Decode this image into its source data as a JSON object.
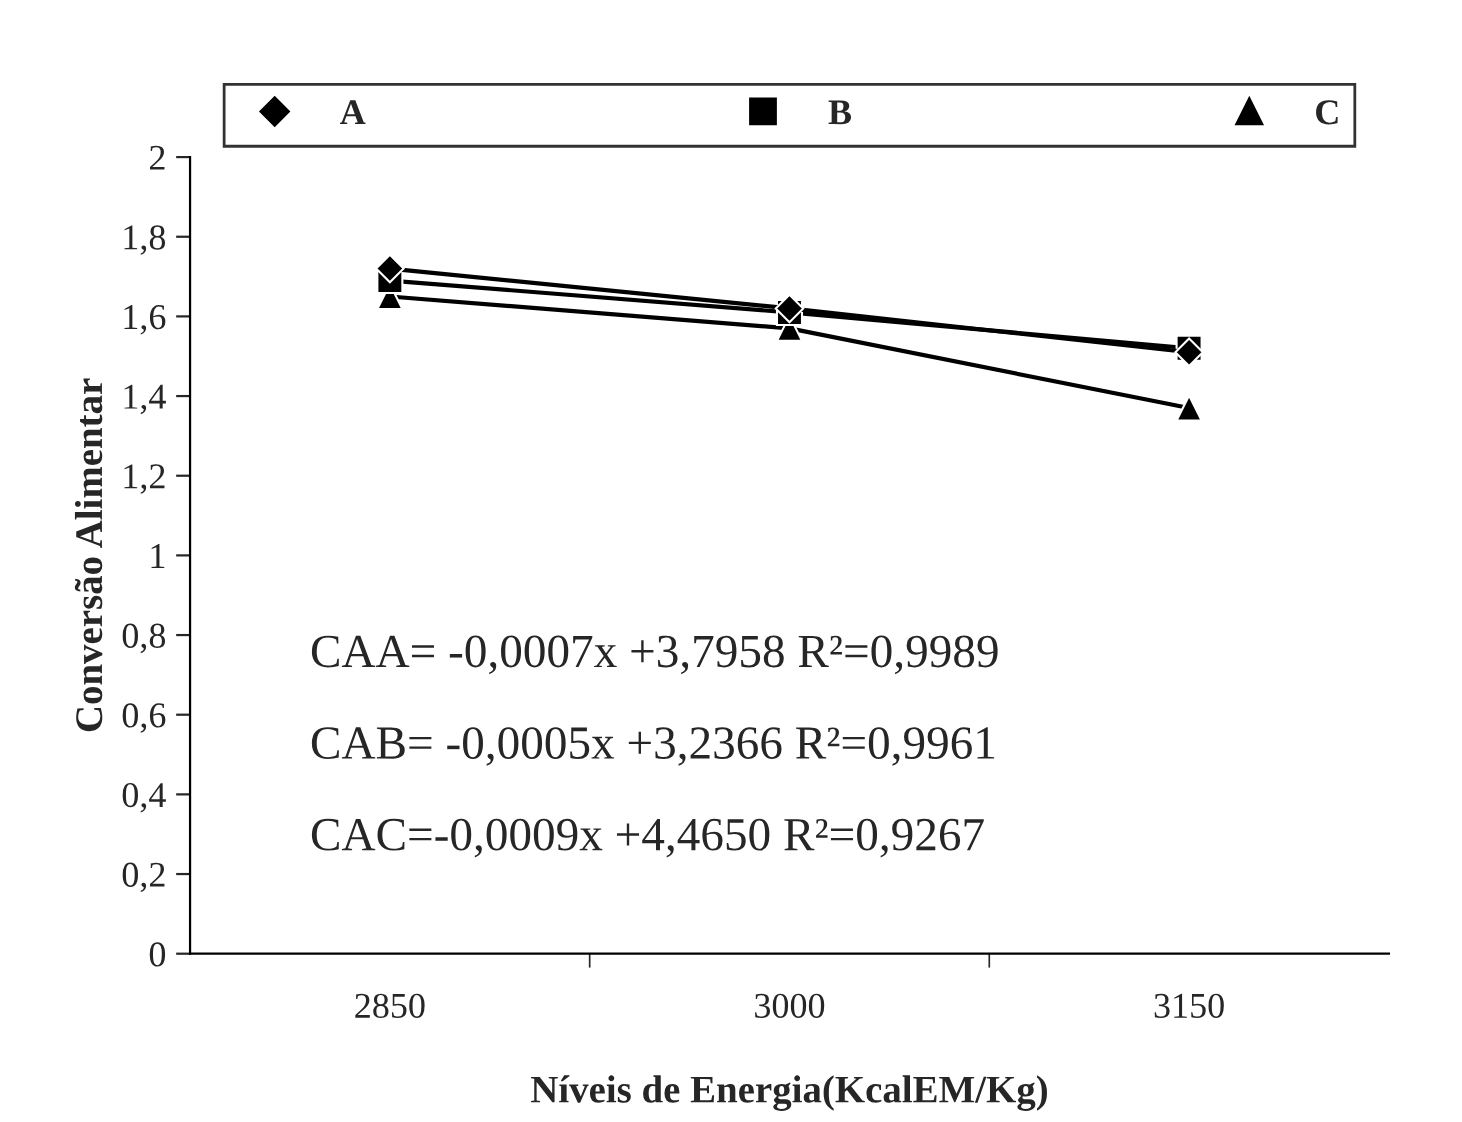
{
  "chart_data": {
    "type": "line",
    "xlabel": "Níveis de Energia(KcalEM/Kg)",
    "ylabel": "Conversão Alimentar",
    "categories": [
      "2850",
      "3000",
      "3150"
    ],
    "series": [
      {
        "name": "A",
        "color": "#000000",
        "marker": "diamond",
        "values": [
          1.72,
          1.62,
          1.51
        ]
      },
      {
        "name": "B",
        "color": "#000000",
        "marker": "square",
        "values": [
          1.69,
          1.61,
          1.52
        ]
      },
      {
        "name": "C",
        "color": "#000000",
        "marker": "triangle",
        "values": [
          1.65,
          1.57,
          1.37
        ]
      }
    ],
    "ylim": [
      0,
      2
    ],
    "yticks": [
      0,
      {
        "value": 0.2,
        "label": "0,2"
      },
      {
        "value": 0.4,
        "label": "0,4"
      },
      {
        "value": 0.6,
        "label": "0,6"
      },
      {
        "value": 0.8,
        "label": "0,8"
      },
      1,
      {
        "value": 1.2,
        "label": "1,2"
      },
      {
        "value": 1.4,
        "label": "1,4"
      },
      {
        "value": 1.6,
        "label": "1,6"
      },
      {
        "value": 1.8,
        "label": "1,8"
      },
      2
    ],
    "annotations": [
      "CAA= -0,0007x +3,7958 R²=0,9989",
      "CAB= -0,0005x +3,2366 R²=0,9961",
      "CAC=-0,0009x +4,4650 R²=0,9267"
    ],
    "legend": "top",
    "grid": false
  }
}
